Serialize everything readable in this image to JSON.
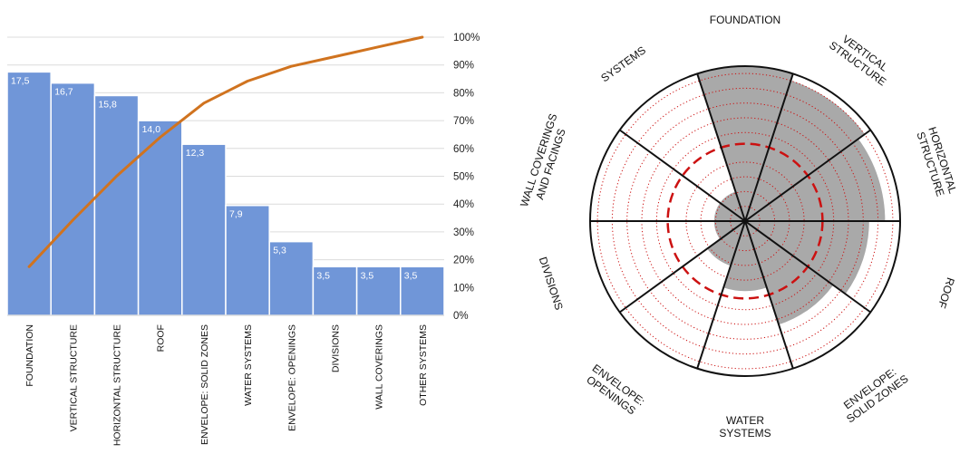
{
  "chart_data": [
    {
      "type": "bar",
      "categories": [
        "FOUNDATION",
        "VERTICAL STRUCTURE",
        "HORIZONTAL STRUCTURE",
        "ROOF",
        "ENVELOPE: SOLID ZONES",
        "WATER SYSTEMS",
        "ENVELOPE: OPENINGS",
        "DIVISIONS",
        "WALL COVERINGS",
        "OTHER SYSTEMS"
      ],
      "value_labels": [
        "17,5",
        "16,7",
        "15,8",
        "14,0",
        "12,3",
        "7,9",
        "5,3",
        "3,5",
        "3,5",
        "3,5"
      ],
      "series": [
        {
          "type": "bar",
          "values": [
            17.5,
            16.7,
            15.8,
            14.0,
            12.3,
            7.9,
            5.3,
            3.5,
            3.5,
            3.5
          ],
          "color": "#7096d8"
        },
        {
          "type": "line",
          "axis": "right",
          "values": [
            17.5,
            34.2,
            50.0,
            64.0,
            76.3,
            84.2,
            89.5,
            93.0,
            96.5,
            100.0
          ],
          "color": "#d0731f"
        }
      ],
      "right_axis": {
        "ticks": [
          "0%",
          "10%",
          "20%",
          "30%",
          "40%",
          "50%",
          "60%",
          "70%",
          "80%",
          "90%",
          "100%"
        ],
        "ylim": [
          0,
          100
        ]
      },
      "left_ylim": [
        0,
        20
      ],
      "grid": true
    },
    {
      "type": "radar",
      "categories": [
        "FOUNDATION",
        "VERTICAL STRUCTURE",
        "HORIZONTAL STRUCTURE",
        "ROOF",
        "ENVELOPE: SOLID ZONES",
        "WATER SYSTEMS",
        "ENVELOPE: OPENINGS",
        "DIVISIONS",
        "WALL COVERINGS AND FACINGS",
        "SYSTEMS"
      ],
      "values": [
        17.5,
        16.7,
        15.8,
        14.0,
        12.3,
        7.9,
        5.3,
        3.5,
        3.5,
        3.5
      ],
      "rmax": 17.5,
      "rings": 10,
      "threshold_ring": 5,
      "fill_color": "#a9a9a9",
      "ring_color": "#cc1111"
    }
  ]
}
